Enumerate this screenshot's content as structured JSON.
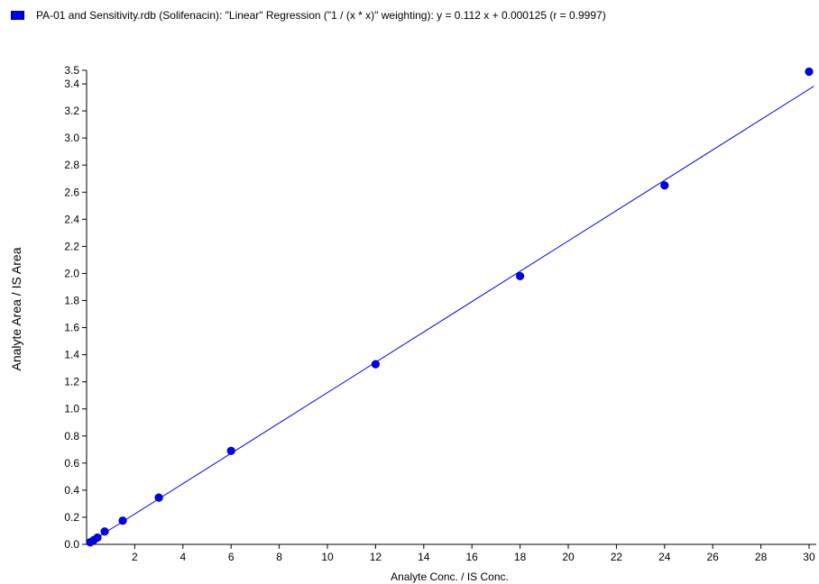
{
  "legend": {
    "text": "PA-01 and Sensitivity.rdb (Solifenacin): \"Linear\" Regression (\"1  / (x * x)\" weighting): y = 0.112 x + 0.000125 (r = 0.9997)",
    "swatch_color": "#0000ff"
  },
  "chart_data": {
    "type": "scatter",
    "xlabel": "Analyte Conc. / IS Conc.",
    "ylabel": "Analyte Area / IS Area",
    "xlim": [
      0,
      30.3
    ],
    "ylim": [
      0,
      3.5
    ],
    "x_ticks": [
      2,
      4,
      6,
      8,
      10,
      12,
      14,
      16,
      18,
      20,
      22,
      24,
      26,
      28,
      30
    ],
    "x_tick_labels": [
      "2",
      "4",
      "6",
      "8",
      "10",
      "12",
      "14",
      "16",
      "18",
      "20",
      "22",
      "24",
      "26",
      "28",
      "30"
    ],
    "y_ticks": [
      0.0,
      0.2,
      0.4,
      0.6,
      0.8,
      1.0,
      1.2,
      1.4,
      1.6,
      1.8,
      2.0,
      2.2,
      2.4,
      2.6,
      2.8,
      3.0,
      3.2,
      3.4,
      3.5
    ],
    "y_tick_labels": [
      "0.0",
      "0.2",
      "0.4",
      "0.6",
      "0.8",
      "1.0",
      "1.2",
      "1.4",
      "1.6",
      "1.8",
      "2.0",
      "2.2",
      "2.4",
      "2.6",
      "2.8",
      "3.0",
      "3.2",
      "3.4",
      "3.5"
    ],
    "grid": false,
    "legend_position": "top",
    "series": [
      {
        "name": "PA-01 and Sensitivity.rdb (Solifenacin)",
        "color": "#0000ff",
        "marker": "circle",
        "points": [
          {
            "x": 0.15,
            "y": 0.015
          },
          {
            "x": 0.3,
            "y": 0.032
          },
          {
            "x": 0.45,
            "y": 0.05
          },
          {
            "x": 0.75,
            "y": 0.095
          },
          {
            "x": 1.5,
            "y": 0.175
          },
          {
            "x": 3.0,
            "y": 0.345
          },
          {
            "x": 6.0,
            "y": 0.69
          },
          {
            "x": 12.0,
            "y": 1.33
          },
          {
            "x": 18.0,
            "y": 1.98
          },
          {
            "x": 24.0,
            "y": 2.65
          },
          {
            "x": 30.0,
            "y": 3.49
          }
        ]
      }
    ],
    "regression": {
      "type": "linear",
      "slope": 0.112,
      "intercept": 0.000125,
      "x_range": [
        0.15,
        30.2
      ],
      "color": "#0000ff"
    }
  }
}
